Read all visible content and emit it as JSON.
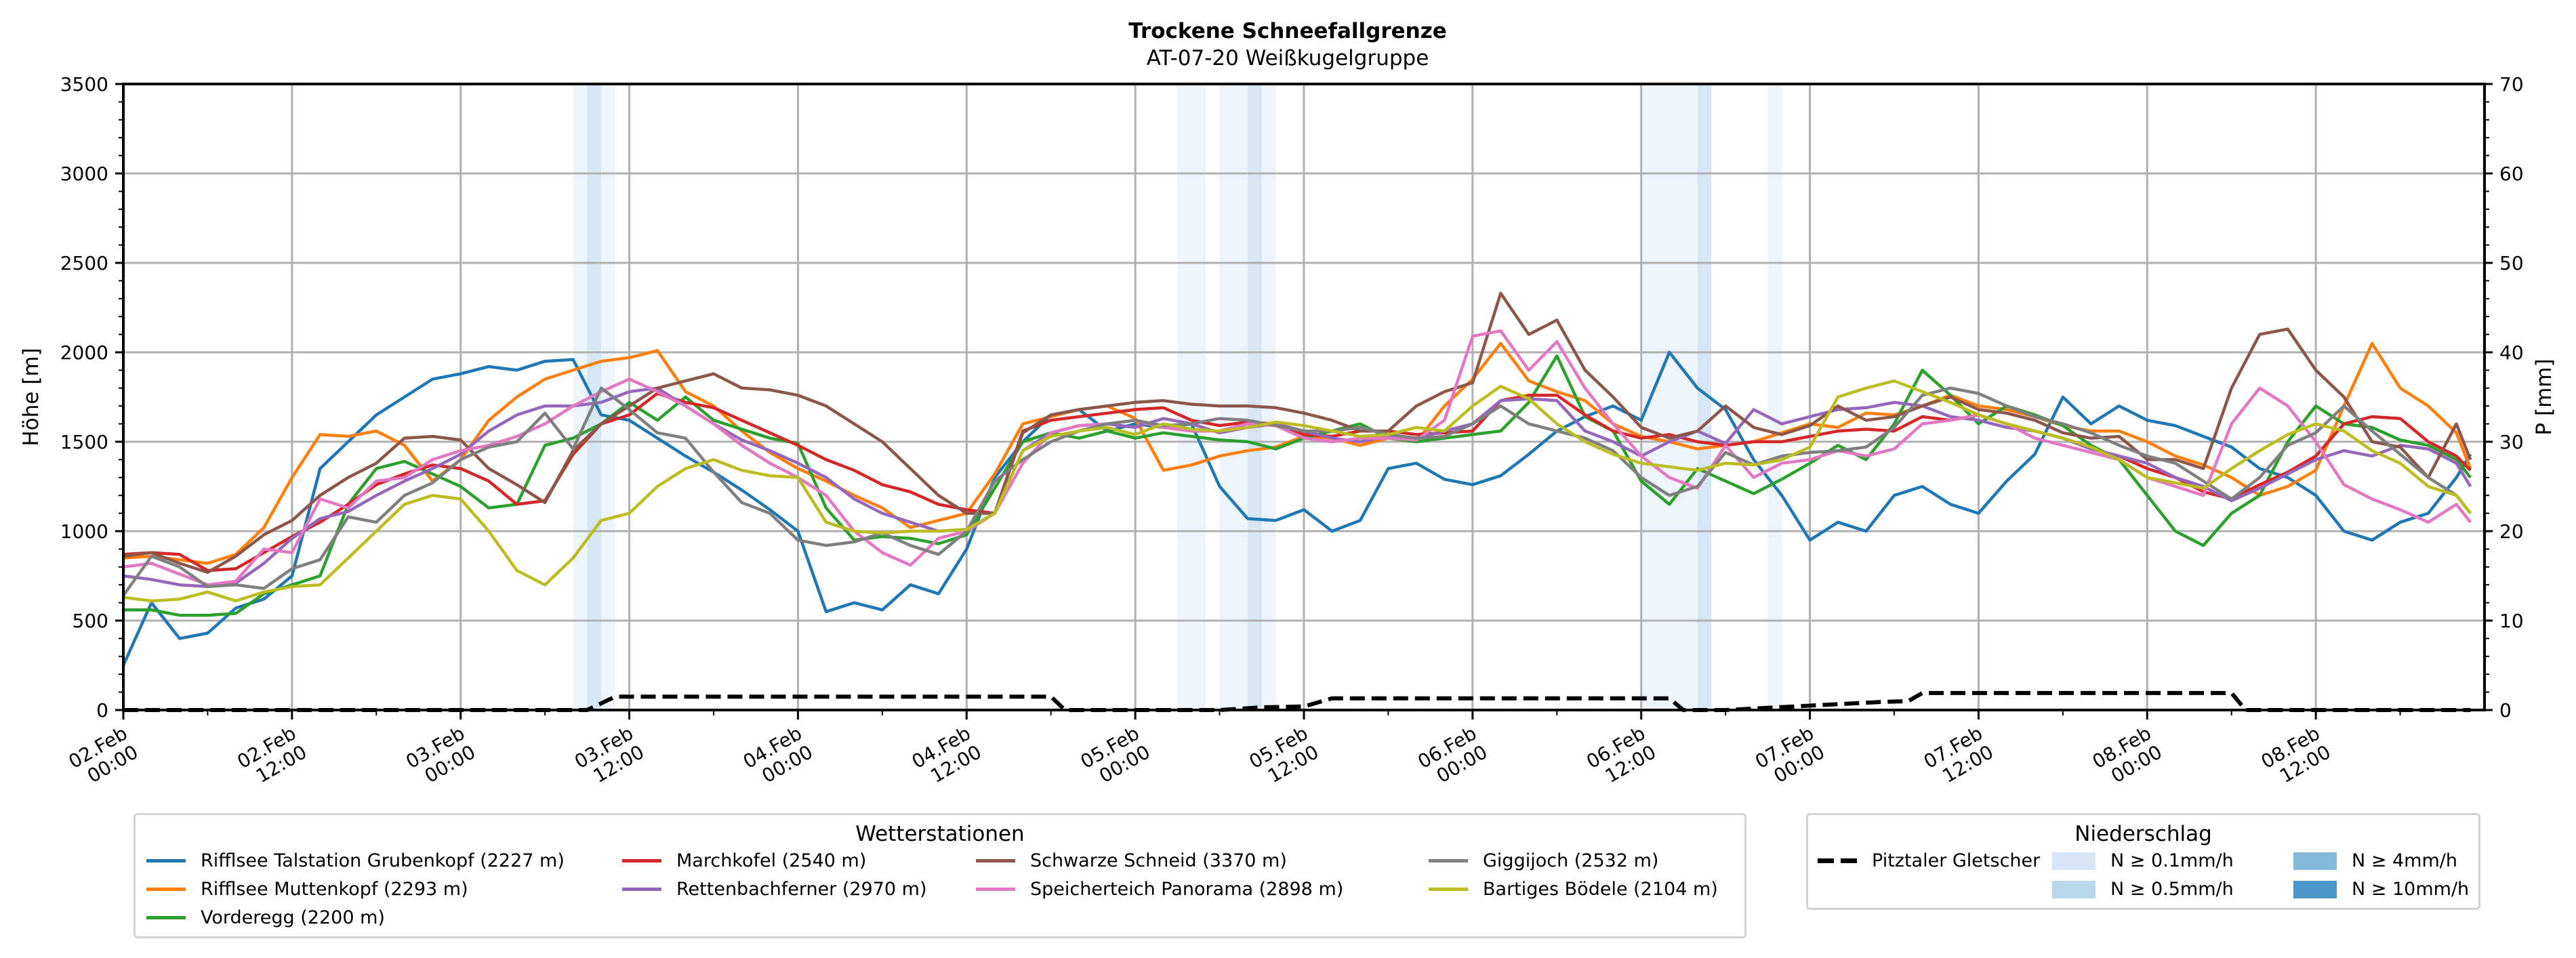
{
  "chart_data": {
    "type": "line",
    "title": "Trockene Schneefallgrenze",
    "subtitle": "AT-07-20 Weißkugelgruppe",
    "ylabel": "Höhe [m]",
    "y2label": "P [mm]",
    "ylim": [
      0,
      3500
    ],
    "y2lim": [
      0,
      70
    ],
    "yticks": [
      0,
      500,
      1000,
      1500,
      2000,
      2500,
      3000,
      3500
    ],
    "y2ticks": [
      0,
      10,
      20,
      30,
      40,
      50,
      60,
      70
    ],
    "grid": true,
    "x_unit": "hours since 02.Feb 00:00",
    "x_step_hours": 2,
    "xlim_hours": [
      0,
      167
    ],
    "xticks": [
      {
        "hour": 0,
        "line1": "02.Feb",
        "line2": "00:00"
      },
      {
        "hour": 12,
        "line1": "02.Feb",
        "line2": "12:00"
      },
      {
        "hour": 24,
        "line1": "03.Feb",
        "line2": "00:00"
      },
      {
        "hour": 36,
        "line1": "03.Feb",
        "line2": "12:00"
      },
      {
        "hour": 48,
        "line1": "04.Feb",
        "line2": "00:00"
      },
      {
        "hour": 60,
        "line1": "04.Feb",
        "line2": "12:00"
      },
      {
        "hour": 72,
        "line1": "05.Feb",
        "line2": "00:00"
      },
      {
        "hour": 84,
        "line1": "05.Feb",
        "line2": "12:00"
      },
      {
        "hour": 96,
        "line1": "06.Feb",
        "line2": "00:00"
      },
      {
        "hour": 108,
        "line1": "06.Feb",
        "line2": "12:00"
      },
      {
        "hour": 120,
        "line1": "07.Feb",
        "line2": "00:00"
      },
      {
        "hour": 132,
        "line1": "07.Feb",
        "line2": "12:00"
      },
      {
        "hour": 144,
        "line1": "08.Feb",
        "line2": "00:00"
      },
      {
        "hour": 156,
        "line1": "08.Feb",
        "line2": "12:00"
      }
    ],
    "series": [
      {
        "name": "Rifflsee Talstation Grubenkopf (2227 m)",
        "color": "#1f77b4",
        "values": [
          250,
          600,
          400,
          430,
          570,
          620,
          750,
          1350,
          1500,
          1650,
          1750,
          1850,
          1880,
          1920,
          1900,
          1950,
          1960,
          1650,
          1620,
          1520,
          1420,
          1330,
          1230,
          1120,
          1000,
          550,
          600,
          560,
          700,
          650,
          900,
          1300,
          1500,
          1650,
          1680,
          1560,
          1600,
          1580,
          1600,
          1250,
          1070,
          1060,
          1120,
          1000,
          1060,
          1350,
          1380,
          1290,
          1260,
          1310,
          1430,
          1560,
          1640,
          1700,
          1620,
          2000,
          1800,
          1680,
          1400,
          1200,
          950,
          1050,
          1000,
          1200,
          1250,
          1150,
          1100,
          1280,
          1430,
          1750,
          1600,
          1700,
          1620,
          1590,
          1530,
          1470,
          1350,
          1300,
          1200,
          1000,
          950,
          1050,
          1100,
          1300,
          1430
        ]
      },
      {
        "name": "Rifflsee Muttenkopf (2293 m)",
        "color": "#ff7f0e",
        "values": [
          850,
          860,
          840,
          820,
          870,
          1020,
          1300,
          1540,
          1530,
          1560,
          1480,
          1280,
          1400,
          1620,
          1750,
          1850,
          1900,
          1950,
          1970,
          2010,
          1780,
          1700,
          1560,
          1440,
          1350,
          1280,
          1200,
          1130,
          1020,
          1060,
          1100,
          1320,
          1600,
          1640,
          1680,
          1700,
          1630,
          1340,
          1370,
          1420,
          1450,
          1470,
          1530,
          1520,
          1480,
          1520,
          1500,
          1700,
          1850,
          2050,
          1840,
          1780,
          1730,
          1600,
          1530,
          1500,
          1460,
          1480,
          1500,
          1550,
          1600,
          1580,
          1660,
          1650,
          1700,
          1760,
          1700,
          1680,
          1640,
          1590,
          1560,
          1560,
          1500,
          1420,
          1370,
          1300,
          1200,
          1250,
          1340,
          1700,
          2050,
          1800,
          1700,
          1550,
          1350
        ]
      },
      {
        "name": "Vorderegg (2200 m)",
        "color": "#2ca02c",
        "values": [
          560,
          560,
          530,
          530,
          540,
          650,
          700,
          750,
          1150,
          1350,
          1390,
          1320,
          1250,
          1130,
          1150,
          1480,
          1520,
          1600,
          1720,
          1620,
          1750,
          1620,
          1570,
          1520,
          1490,
          1130,
          950,
          970,
          960,
          930,
          980,
          1240,
          1500,
          1550,
          1520,
          1560,
          1520,
          1550,
          1530,
          1510,
          1500,
          1460,
          1520,
          1560,
          1600,
          1520,
          1500,
          1520,
          1540,
          1560,
          1720,
          1980,
          1640,
          1560,
          1280,
          1150,
          1350,
          1280,
          1210,
          1290,
          1380,
          1480,
          1400,
          1600,
          1900,
          1760,
          1600,
          1700,
          1650,
          1590,
          1480,
          1400,
          1200,
          1000,
          920,
          1100,
          1200,
          1500,
          1700,
          1600,
          1580,
          1510,
          1480,
          1400,
          1300
        ]
      },
      {
        "name": "Marchkofel (2540 m)",
        "color": "#d62728",
        "values": [
          870,
          880,
          870,
          780,
          790,
          880,
          970,
          1050,
          1150,
          1260,
          1320,
          1370,
          1350,
          1280,
          1150,
          1170,
          1430,
          1600,
          1650,
          1770,
          1720,
          1690,
          1620,
          1550,
          1480,
          1400,
          1340,
          1260,
          1220,
          1150,
          1120,
          1100,
          1560,
          1620,
          1640,
          1660,
          1680,
          1690,
          1620,
          1590,
          1610,
          1600,
          1540,
          1530,
          1560,
          1560,
          1540,
          1550,
          1560,
          1730,
          1760,
          1760,
          1650,
          1560,
          1520,
          1540,
          1500,
          1480,
          1500,
          1500,
          1530,
          1560,
          1570,
          1560,
          1640,
          1620,
          1650,
          1600,
          1560,
          1520,
          1460,
          1420,
          1350,
          1300,
          1220,
          1180,
          1260,
          1330,
          1420,
          1600,
          1640,
          1630,
          1500,
          1420,
          1340
        ]
      },
      {
        "name": "Rettenbachferner (2970 m)",
        "color": "#9467bd",
        "values": [
          750,
          730,
          700,
          690,
          710,
          820,
          960,
          1070,
          1110,
          1200,
          1280,
          1350,
          1430,
          1560,
          1650,
          1700,
          1700,
          1720,
          1780,
          1800,
          1700,
          1600,
          1510,
          1450,
          1380,
          1300,
          1180,
          1100,
          1050,
          1000,
          1010,
          1100,
          1450,
          1550,
          1590,
          1600,
          1580,
          1630,
          1600,
          1550,
          1580,
          1600,
          1560,
          1520,
          1500,
          1530,
          1520,
          1560,
          1600,
          1730,
          1740,
          1730,
          1560,
          1500,
          1420,
          1500,
          1560,
          1490,
          1680,
          1600,
          1640,
          1680,
          1690,
          1720,
          1700,
          1640,
          1620,
          1580,
          1560,
          1520,
          1460,
          1420,
          1380,
          1300,
          1250,
          1170,
          1240,
          1320,
          1400,
          1450,
          1420,
          1480,
          1460,
          1380,
          1250
        ]
      },
      {
        "name": "Schwarze Schneid (3370 m)",
        "color": "#8c564b",
        "values": [
          860,
          880,
          820,
          770,
          860,
          980,
          1060,
          1200,
          1300,
          1380,
          1520,
          1530,
          1510,
          1350,
          1260,
          1160,
          1450,
          1600,
          1700,
          1800,
          1840,
          1880,
          1800,
          1790,
          1760,
          1700,
          1600,
          1500,
          1350,
          1200,
          1100,
          1100,
          1550,
          1650,
          1680,
          1700,
          1720,
          1730,
          1710,
          1700,
          1700,
          1690,
          1660,
          1620,
          1560,
          1560,
          1700,
          1780,
          1830,
          2330,
          2100,
          2180,
          1900,
          1750,
          1580,
          1520,
          1560,
          1700,
          1580,
          1540,
          1590,
          1700,
          1620,
          1640,
          1700,
          1750,
          1680,
          1660,
          1620,
          1550,
          1520,
          1530,
          1400,
          1400,
          1350,
          1800,
          2100,
          2130,
          1900,
          1750,
          1500,
          1470,
          1300,
          1600,
          1400
        ]
      },
      {
        "name": "Speicherteich Panorama (2898 m)",
        "color": "#e377c2",
        "values": [
          800,
          820,
          760,
          700,
          720,
          900,
          880,
          1180,
          1130,
          1280,
          1300,
          1400,
          1450,
          1480,
          1530,
          1600,
          1700,
          1780,
          1850,
          1780,
          1700,
          1600,
          1480,
          1380,
          1300,
          1200,
          1000,
          880,
          810,
          960,
          1000,
          1100,
          1380,
          1550,
          1590,
          1600,
          1620,
          1580,
          1560,
          1560,
          1600,
          1590,
          1520,
          1500,
          1520,
          1520,
          1510,
          1620,
          2090,
          2120,
          1900,
          2060,
          1800,
          1600,
          1420,
          1300,
          1240,
          1480,
          1300,
          1380,
          1400,
          1450,
          1420,
          1460,
          1600,
          1620,
          1650,
          1600,
          1520,
          1480,
          1440,
          1400,
          1300,
          1250,
          1200,
          1600,
          1800,
          1700,
          1500,
          1260,
          1180,
          1120,
          1050,
          1150,
          1050
        ]
      },
      {
        "name": "Giggijoch (2532 m)",
        "color": "#7f7f7f",
        "values": [
          640,
          860,
          800,
          690,
          700,
          680,
          790,
          840,
          1080,
          1050,
          1200,
          1270,
          1400,
          1470,
          1500,
          1660,
          1460,
          1800,
          1680,
          1550,
          1520,
          1330,
          1160,
          1100,
          950,
          920,
          940,
          990,
          920,
          870,
          1000,
          1280,
          1400,
          1500,
          1560,
          1600,
          1620,
          1590,
          1600,
          1630,
          1620,
          1590,
          1560,
          1560,
          1580,
          1540,
          1520,
          1530,
          1600,
          1700,
          1600,
          1560,
          1520,
          1450,
          1300,
          1200,
          1250,
          1440,
          1370,
          1420,
          1440,
          1450,
          1470,
          1580,
          1760,
          1800,
          1770,
          1700,
          1640,
          1600,
          1550,
          1480,
          1420,
          1380,
          1280,
          1180,
          1300,
          1480,
          1550,
          1700,
          1560,
          1430,
          1300,
          1200,
          1100
        ]
      },
      {
        "name": "Bartiges Bödele (2104 m)",
        "color": "#bcbd22",
        "values": [
          630,
          610,
          620,
          660,
          610,
          660,
          690,
          700,
          850,
          1000,
          1150,
          1200,
          1180,
          1000,
          780,
          700,
          850,
          1060,
          1100,
          1250,
          1350,
          1400,
          1340,
          1310,
          1300,
          1050,
          1000,
          990,
          1000,
          1000,
          1010,
          1100,
          1450,
          1530,
          1560,
          1580,
          1540,
          1600,
          1570,
          1560,
          1580,
          1610,
          1590,
          1560,
          1530,
          1540,
          1580,
          1560,
          1700,
          1810,
          1740,
          1600,
          1500,
          1430,
          1380,
          1360,
          1340,
          1380,
          1370,
          1400,
          1470,
          1750,
          1800,
          1840,
          1780,
          1720,
          1650,
          1600,
          1560,
          1520,
          1470,
          1400,
          1300,
          1270,
          1240,
          1350,
          1450,
          1540,
          1600,
          1560,
          1450,
          1380,
          1250,
          1200,
          1100
        ]
      }
    ],
    "precipitation_series": {
      "name": "Pitztaler Gletscher",
      "style": "dashed",
      "color": "#000000",
      "axis": "P [mm]",
      "hours": [
        0,
        33,
        35,
        66,
        67,
        78,
        81,
        84,
        86,
        110,
        111,
        114,
        125,
        127,
        128,
        150,
        151,
        167
      ],
      "values": [
        0,
        0,
        1.5,
        1.5,
        0,
        0,
        0.3,
        0.4,
        1.3,
        1.3,
        0,
        0,
        0.9,
        1.0,
        1.9,
        1.9,
        0,
        0
      ]
    },
    "precipitation_shading": [
      {
        "start_hour": 32.0,
        "end_hour": 33.0,
        "class": "N ≥ 0.1mm/h"
      },
      {
        "start_hour": 33.0,
        "end_hour": 34.0,
        "class": "N ≥ 0.5mm/h"
      },
      {
        "start_hour": 34.0,
        "end_hour": 35.0,
        "class": "N ≥ 0.1mm/h"
      },
      {
        "start_hour": 75.0,
        "end_hour": 77.0,
        "class": "N ≥ 0.1mm/h"
      },
      {
        "start_hour": 78.0,
        "end_hour": 80.0,
        "class": "N ≥ 0.1mm/h"
      },
      {
        "start_hour": 80.0,
        "end_hour": 81.0,
        "class": "N ≥ 0.5mm/h"
      },
      {
        "start_hour": 81.0,
        "end_hour": 82.0,
        "class": "N ≥ 0.1mm/h"
      },
      {
        "start_hour": 108.0,
        "end_hour": 112.0,
        "class": "N ≥ 0.1mm/h"
      },
      {
        "start_hour": 112.0,
        "end_hour": 113.0,
        "class": "N ≥ 0.5mm/h"
      },
      {
        "start_hour": 117.0,
        "end_hour": 118.0,
        "class": "N ≥ 0.1mm/h"
      }
    ],
    "legend_stations": {
      "title": "Wetterstationen",
      "placement": "bottom-left"
    },
    "legend_precip": {
      "title": "Niederschlag",
      "placement": "bottom-right",
      "classes": [
        {
          "label": "N ≥ 0.1mm/h",
          "color": "#d6e6f4"
        },
        {
          "label": "N ≥ 0.5mm/h",
          "color": "#b9d5ea"
        },
        {
          "label": "N ≥ 4mm/h",
          "color": "#84b9da"
        },
        {
          "label": "N ≥ 10mm/h",
          "color": "#4a97c9"
        }
      ],
      "shade_colors_in_plot": {
        "N ≥ 0.1mm/h": "#eef4fb",
        "N ≥ 0.5mm/h": "#d6e6f4"
      }
    }
  }
}
